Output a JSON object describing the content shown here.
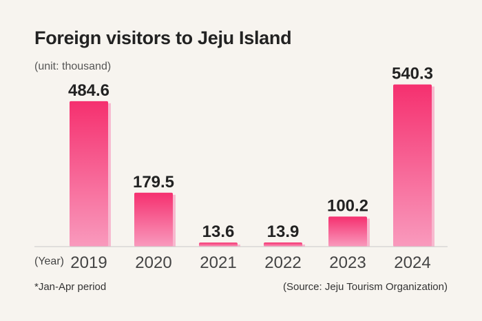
{
  "chart_data": {
    "type": "bar",
    "title": "Foreign visitors to Jeju Island",
    "unit_label": "(unit: thousand)",
    "xlabel": "(Year)",
    "ylabel": "",
    "categories": [
      "2019",
      "2020",
      "2021",
      "2022",
      "2023",
      "2024"
    ],
    "values": [
      484.6,
      179.5,
      13.6,
      13.9,
      100.2,
      540.3
    ],
    "value_labels": [
      "484.6",
      "179.5",
      "13.6",
      "13.9",
      "100.2",
      "540.3"
    ],
    "ylim": [
      0,
      560
    ],
    "grid": false,
    "legend": "none",
    "footnote": "*Jan-Apr period",
    "source": "(Source: Jeju Tourism Organization)",
    "colors": {
      "bar_top": "#f5306f",
      "bar_bottom": "#f99abd",
      "bar_shadow": "#f7b9cf",
      "baseline": "#c9c9c9"
    }
  }
}
